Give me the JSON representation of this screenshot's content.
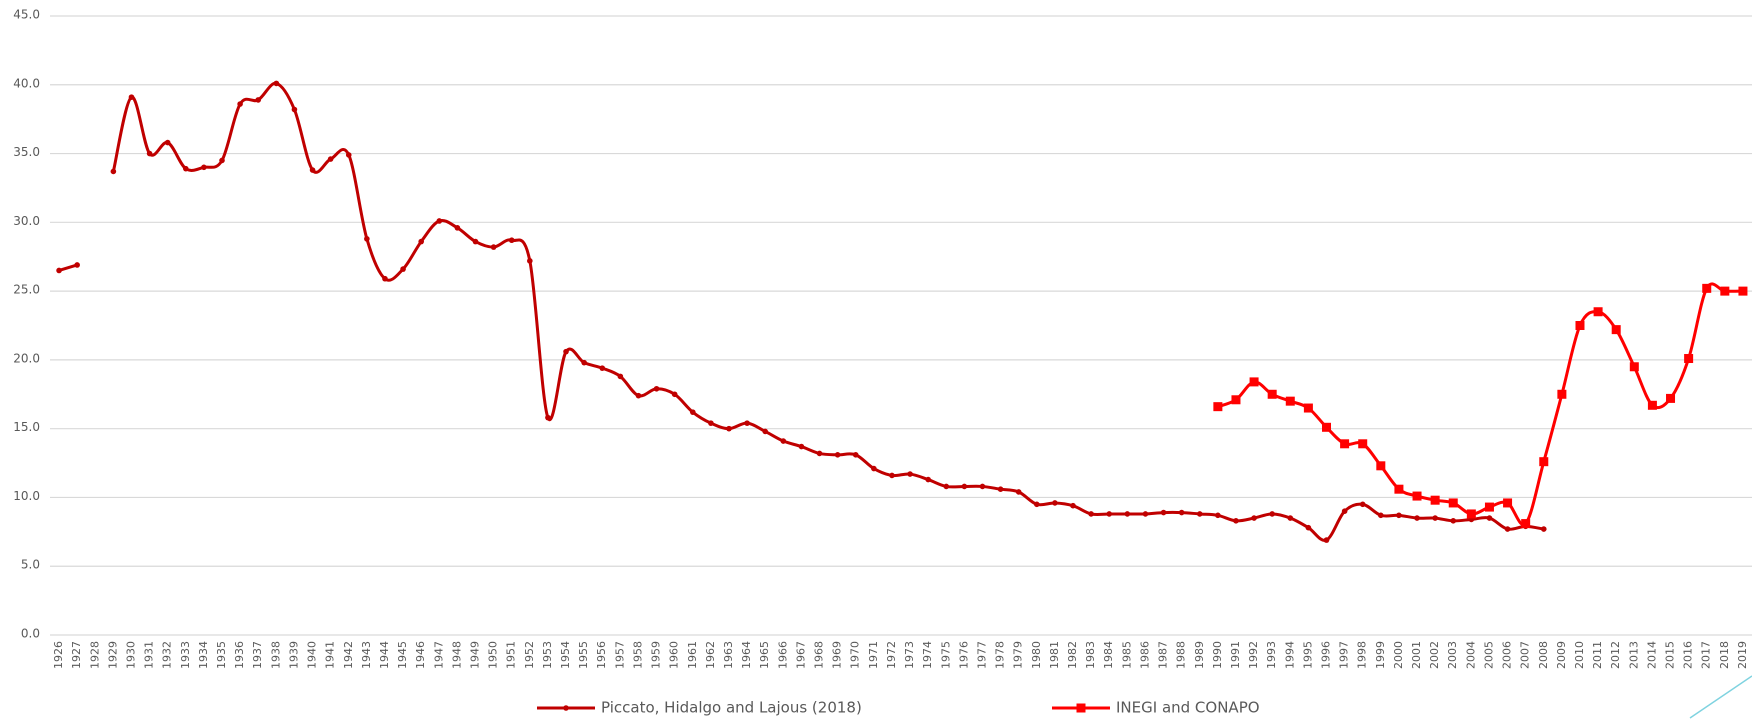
{
  "chart_data": {
    "type": "line",
    "categories": [
      "1926",
      "1927",
      "1928",
      "1929",
      "1930",
      "1931",
      "1932",
      "1933",
      "1934",
      "1935",
      "1936",
      "1937",
      "1938",
      "1939",
      "1940",
      "1941",
      "1942",
      "1943",
      "1944",
      "1945",
      "1946",
      "1947",
      "1948",
      "1949",
      "1950",
      "1951",
      "1952",
      "1953",
      "1954",
      "1955",
      "1956",
      "1957",
      "1958",
      "1959",
      "1960",
      "1961",
      "1962",
      "1963",
      "1964",
      "1965",
      "1966",
      "1967",
      "1968",
      "1969",
      "1970",
      "1971",
      "1972",
      "1973",
      "1974",
      "1975",
      "1976",
      "1977",
      "1978",
      "1979",
      "1980",
      "1981",
      "1982",
      "1983",
      "1984",
      "1985",
      "1986",
      "1987",
      "1988",
      "1989",
      "1990",
      "1991",
      "1992",
      "1993",
      "1994",
      "1995",
      "1996",
      "1997",
      "1998",
      "1999",
      "2000",
      "2001",
      "2002",
      "2003",
      "2004",
      "2005",
      "2006",
      "2007",
      "2008",
      "2009",
      "2010",
      "2011",
      "2012",
      "2013",
      "2014",
      "2015",
      "2016",
      "2017",
      "2018",
      "2019"
    ],
    "series": [
      {
        "name": "Piccato, Hidalgo and Lajous (2018)",
        "color": "#c00000",
        "marker": "circle",
        "values": [
          26.5,
          26.9,
          null,
          33.7,
          39.1,
          35.0,
          35.8,
          33.9,
          34.0,
          34.5,
          38.6,
          38.9,
          40.1,
          38.2,
          33.8,
          34.6,
          34.9,
          28.8,
          25.9,
          26.6,
          28.6,
          30.1,
          29.6,
          28.6,
          28.2,
          28.7,
          27.2,
          15.8,
          20.6,
          19.8,
          19.4,
          18.8,
          17.4,
          17.9,
          17.5,
          16.2,
          15.4,
          15.0,
          15.4,
          14.8,
          14.1,
          13.7,
          13.2,
          13.1,
          13.1,
          12.1,
          11.6,
          11.7,
          11.3,
          10.8,
          10.8,
          10.8,
          10.6,
          10.4,
          9.5,
          9.6,
          9.4,
          8.8,
          8.8,
          8.8,
          8.8,
          8.9,
          8.9,
          8.8,
          8.7,
          8.3,
          8.5,
          8.8,
          8.5,
          7.8,
          6.9,
          9.0,
          9.5,
          8.7,
          8.7,
          8.5,
          8.5,
          8.3,
          8.4,
          8.5,
          7.7,
          7.9,
          7.7,
          null,
          null,
          null,
          null,
          null,
          null,
          null,
          null,
          null,
          null,
          null
        ]
      },
      {
        "name": "INEGI and CONAPO",
        "color": "#ff0000",
        "marker": "square",
        "values": [
          null,
          null,
          null,
          null,
          null,
          null,
          null,
          null,
          null,
          null,
          null,
          null,
          null,
          null,
          null,
          null,
          null,
          null,
          null,
          null,
          null,
          null,
          null,
          null,
          null,
          null,
          null,
          null,
          null,
          null,
          null,
          null,
          null,
          null,
          null,
          null,
          null,
          null,
          null,
          null,
          null,
          null,
          null,
          null,
          null,
          null,
          null,
          null,
          null,
          null,
          null,
          null,
          null,
          null,
          null,
          null,
          null,
          null,
          null,
          null,
          null,
          null,
          null,
          null,
          16.6,
          17.1,
          18.4,
          17.5,
          17.0,
          16.5,
          15.1,
          13.9,
          13.9,
          12.3,
          10.6,
          10.1,
          9.8,
          9.6,
          8.8,
          9.3,
          9.6,
          8.1,
          12.6,
          17.5,
          22.5,
          23.5,
          22.2,
          19.5,
          16.7,
          17.2,
          20.1,
          25.2,
          25.0,
          25.0
        ]
      }
    ],
    "ylim": [
      0,
      45
    ],
    "yticks": [
      {
        "value": 0,
        "label": "0.0"
      },
      {
        "value": 5,
        "label": "5.0"
      },
      {
        "value": 10,
        "label": "10.0"
      },
      {
        "value": 15,
        "label": "15.0"
      },
      {
        "value": 20,
        "label": "20.0"
      },
      {
        "value": 25,
        "label": "25.0"
      },
      {
        "value": 30,
        "label": "30.0"
      },
      {
        "value": 35,
        "label": "35.0"
      },
      {
        "value": 40,
        "label": "40.0"
      },
      {
        "value": 45,
        "label": "45.0"
      }
    ],
    "grid": true,
    "legend": "bottom"
  }
}
